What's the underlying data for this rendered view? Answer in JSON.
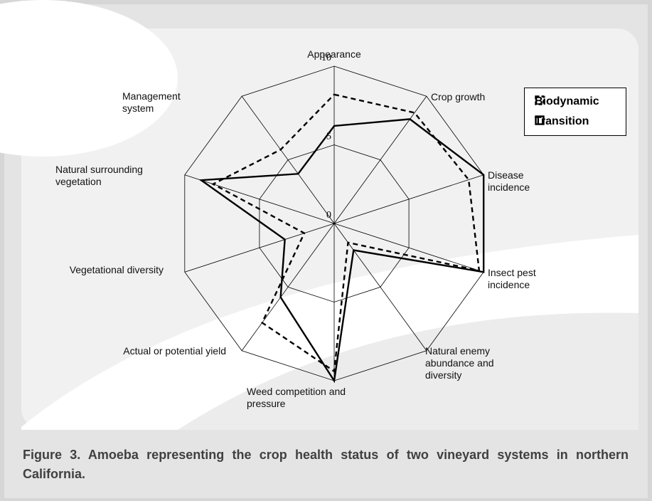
{
  "chart_data": {
    "type": "radar",
    "caption": "Figure 3.  Amoeba representing the crop health status of two vineyard systems in northern California.",
    "categories": [
      "Appearance",
      "Crop growth",
      "Disease incidence",
      "Insect pest incidence",
      "Natural enemy abundance and diversity",
      "Weed competition and pressure",
      "Actual or potential yield",
      "Vegetational diversity",
      "Natural surrounding vegetation",
      "Management system"
    ],
    "series": [
      {
        "name": "Biodynamic",
        "color": "#000000",
        "line_style": "dashed",
        "values": [
          8.2,
          8.7,
          9,
          9.7,
          1.5,
          9.4,
          7.8,
          2,
          8.1,
          5.8
        ]
      },
      {
        "name": "Transition",
        "color": "#000000",
        "line_style": "solid",
        "values": [
          6.2,
          8.2,
          10,
          10,
          2.1,
          10,
          5.8,
          3.3,
          8.9,
          3.9
        ]
      }
    ],
    "rlim": [
      0,
      10
    ],
    "rticks": [
      0,
      5,
      10
    ]
  }
}
